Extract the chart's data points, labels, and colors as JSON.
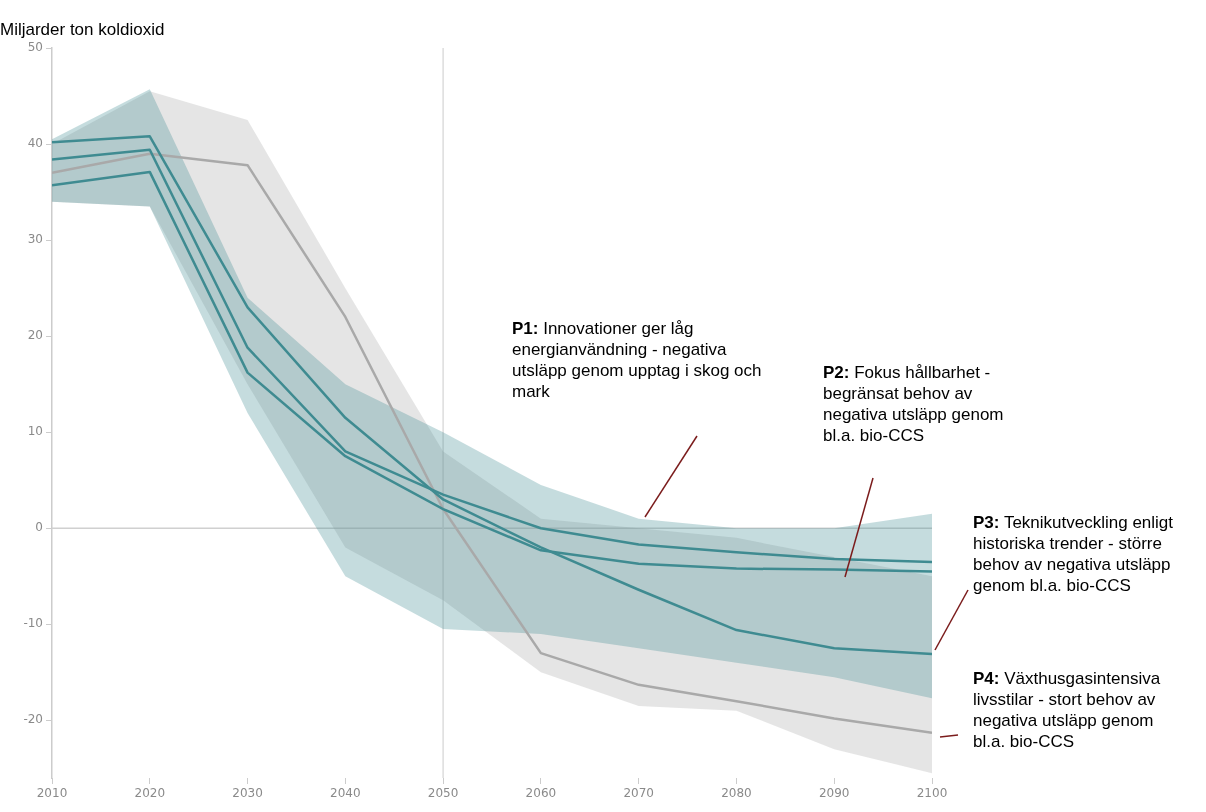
{
  "chart_data": {
    "type": "line",
    "ylabel": "Miljarder ton koldioxid",
    "x": [
      2010,
      2020,
      2030,
      2040,
      2050,
      2060,
      2070,
      2080,
      2090,
      2100
    ],
    "series": [
      {
        "color": "#a9a9a9",
        "values": [
          37,
          39,
          37.8,
          22,
          2,
          -13,
          -16.3,
          -18,
          -19.8,
          -21.3
        ],
        "lower": [
          34,
          33.5,
          15,
          -2,
          -7.5,
          -15,
          -18.5,
          -19,
          -23,
          -25.5
        ],
        "upper": [
          40,
          45.5,
          42.5,
          25,
          8,
          1,
          0,
          -1,
          -3,
          -5
        ]
      },
      {
        "color": "#3f8b91",
        "values": [
          38.4,
          39.4,
          18.8,
          8,
          3.5,
          0,
          -1.7,
          -2.5,
          -3.2,
          -3.5
        ],
        "lower": [
          34,
          33.5,
          12,
          -5,
          -10.5,
          -11,
          -12.5,
          -14,
          -15.5,
          -17.7
        ],
        "upper": [
          40.5,
          45.7,
          24,
          15,
          10,
          4.5,
          1,
          0,
          0,
          1.5
        ]
      },
      {
        "color": "#3f8b91",
        "values": [
          35.7,
          37.1,
          16.2,
          7.5,
          2,
          -2.3,
          -3.7,
          -4.2,
          -4.3,
          -4.5
        ]
      },
      {
        "color": "#3f8b91",
        "values": [
          40.2,
          40.8,
          23,
          11.5,
          3,
          -2,
          -6.4,
          -10.6,
          -12.5,
          -13.1
        ]
      }
    ],
    "xlim": [
      2010,
      2100
    ],
    "xticks": [
      2010,
      2020,
      2030,
      2040,
      2050,
      2060,
      2070,
      2080,
      2090,
      2100
    ],
    "ylim": [
      -26,
      50
    ],
    "yticks": [
      50,
      40,
      30,
      20,
      10,
      0,
      -10,
      -20
    ],
    "ref_lines": [
      {
        "axis": "y",
        "value": 0,
        "color": "#d0d0d0"
      },
      {
        "axis": "x",
        "value": 2050,
        "color": "#dddddd"
      }
    ],
    "annotations": [
      "P1: Innovationer ger låg energianvändning - negativa utsläpp genom upptag i skog och mark",
      "P2: Fokus hållbarhet - begränsat behov av negativa utsläpp genom bl.a. bio-CCS",
      "P3: Teknikutveckling enligt historiska trender - större behov av negativa utsläpp genom bl.a. bio-CCS",
      "P4: Växthusgasintensiva livsstilar - stort behov av negativa utsläpp genom bl.a. bio-CCS"
    ],
    "grid": false,
    "legend": false,
    "marker": "none",
    "line_style": "solid"
  }
}
